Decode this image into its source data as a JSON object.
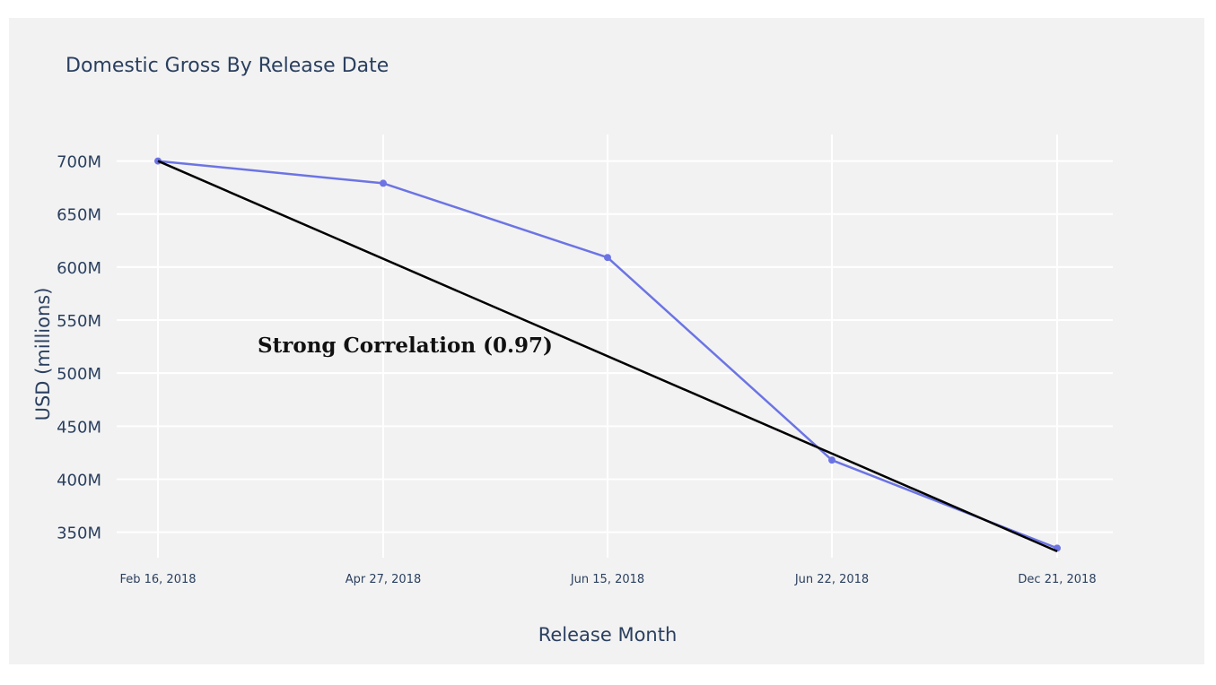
{
  "chart_data": {
    "type": "line",
    "title": "Domestic Gross By Release Date",
    "xlabel": "Release Month",
    "ylabel": "USD (millions)",
    "categories": [
      "Feb 16, 2018",
      "Apr 27, 2018",
      "Jun 15, 2018",
      "Jun 22, 2018",
      "Dec 21, 2018"
    ],
    "series": [
      {
        "values": [
          700,
          679,
          609,
          418,
          335
        ],
        "color": "#6c74e4"
      }
    ],
    "trendline": {
      "values": [
        700,
        608,
        516,
        424,
        332
      ],
      "color": "#000000"
    },
    "y_tick_values": [
      350,
      400,
      450,
      500,
      550,
      600,
      650,
      700
    ],
    "y_tick_labels": [
      "350M",
      "400M",
      "450M",
      "500M",
      "550M",
      "600M",
      "650M",
      "700M"
    ],
    "ylim": [
      326,
      725
    ],
    "annotation": "Strong Correlation (0.97)",
    "grid": true,
    "background_color": "#f2f2f2",
    "grid_color": "#ffffff",
    "text_color": "#2a3f5f"
  }
}
